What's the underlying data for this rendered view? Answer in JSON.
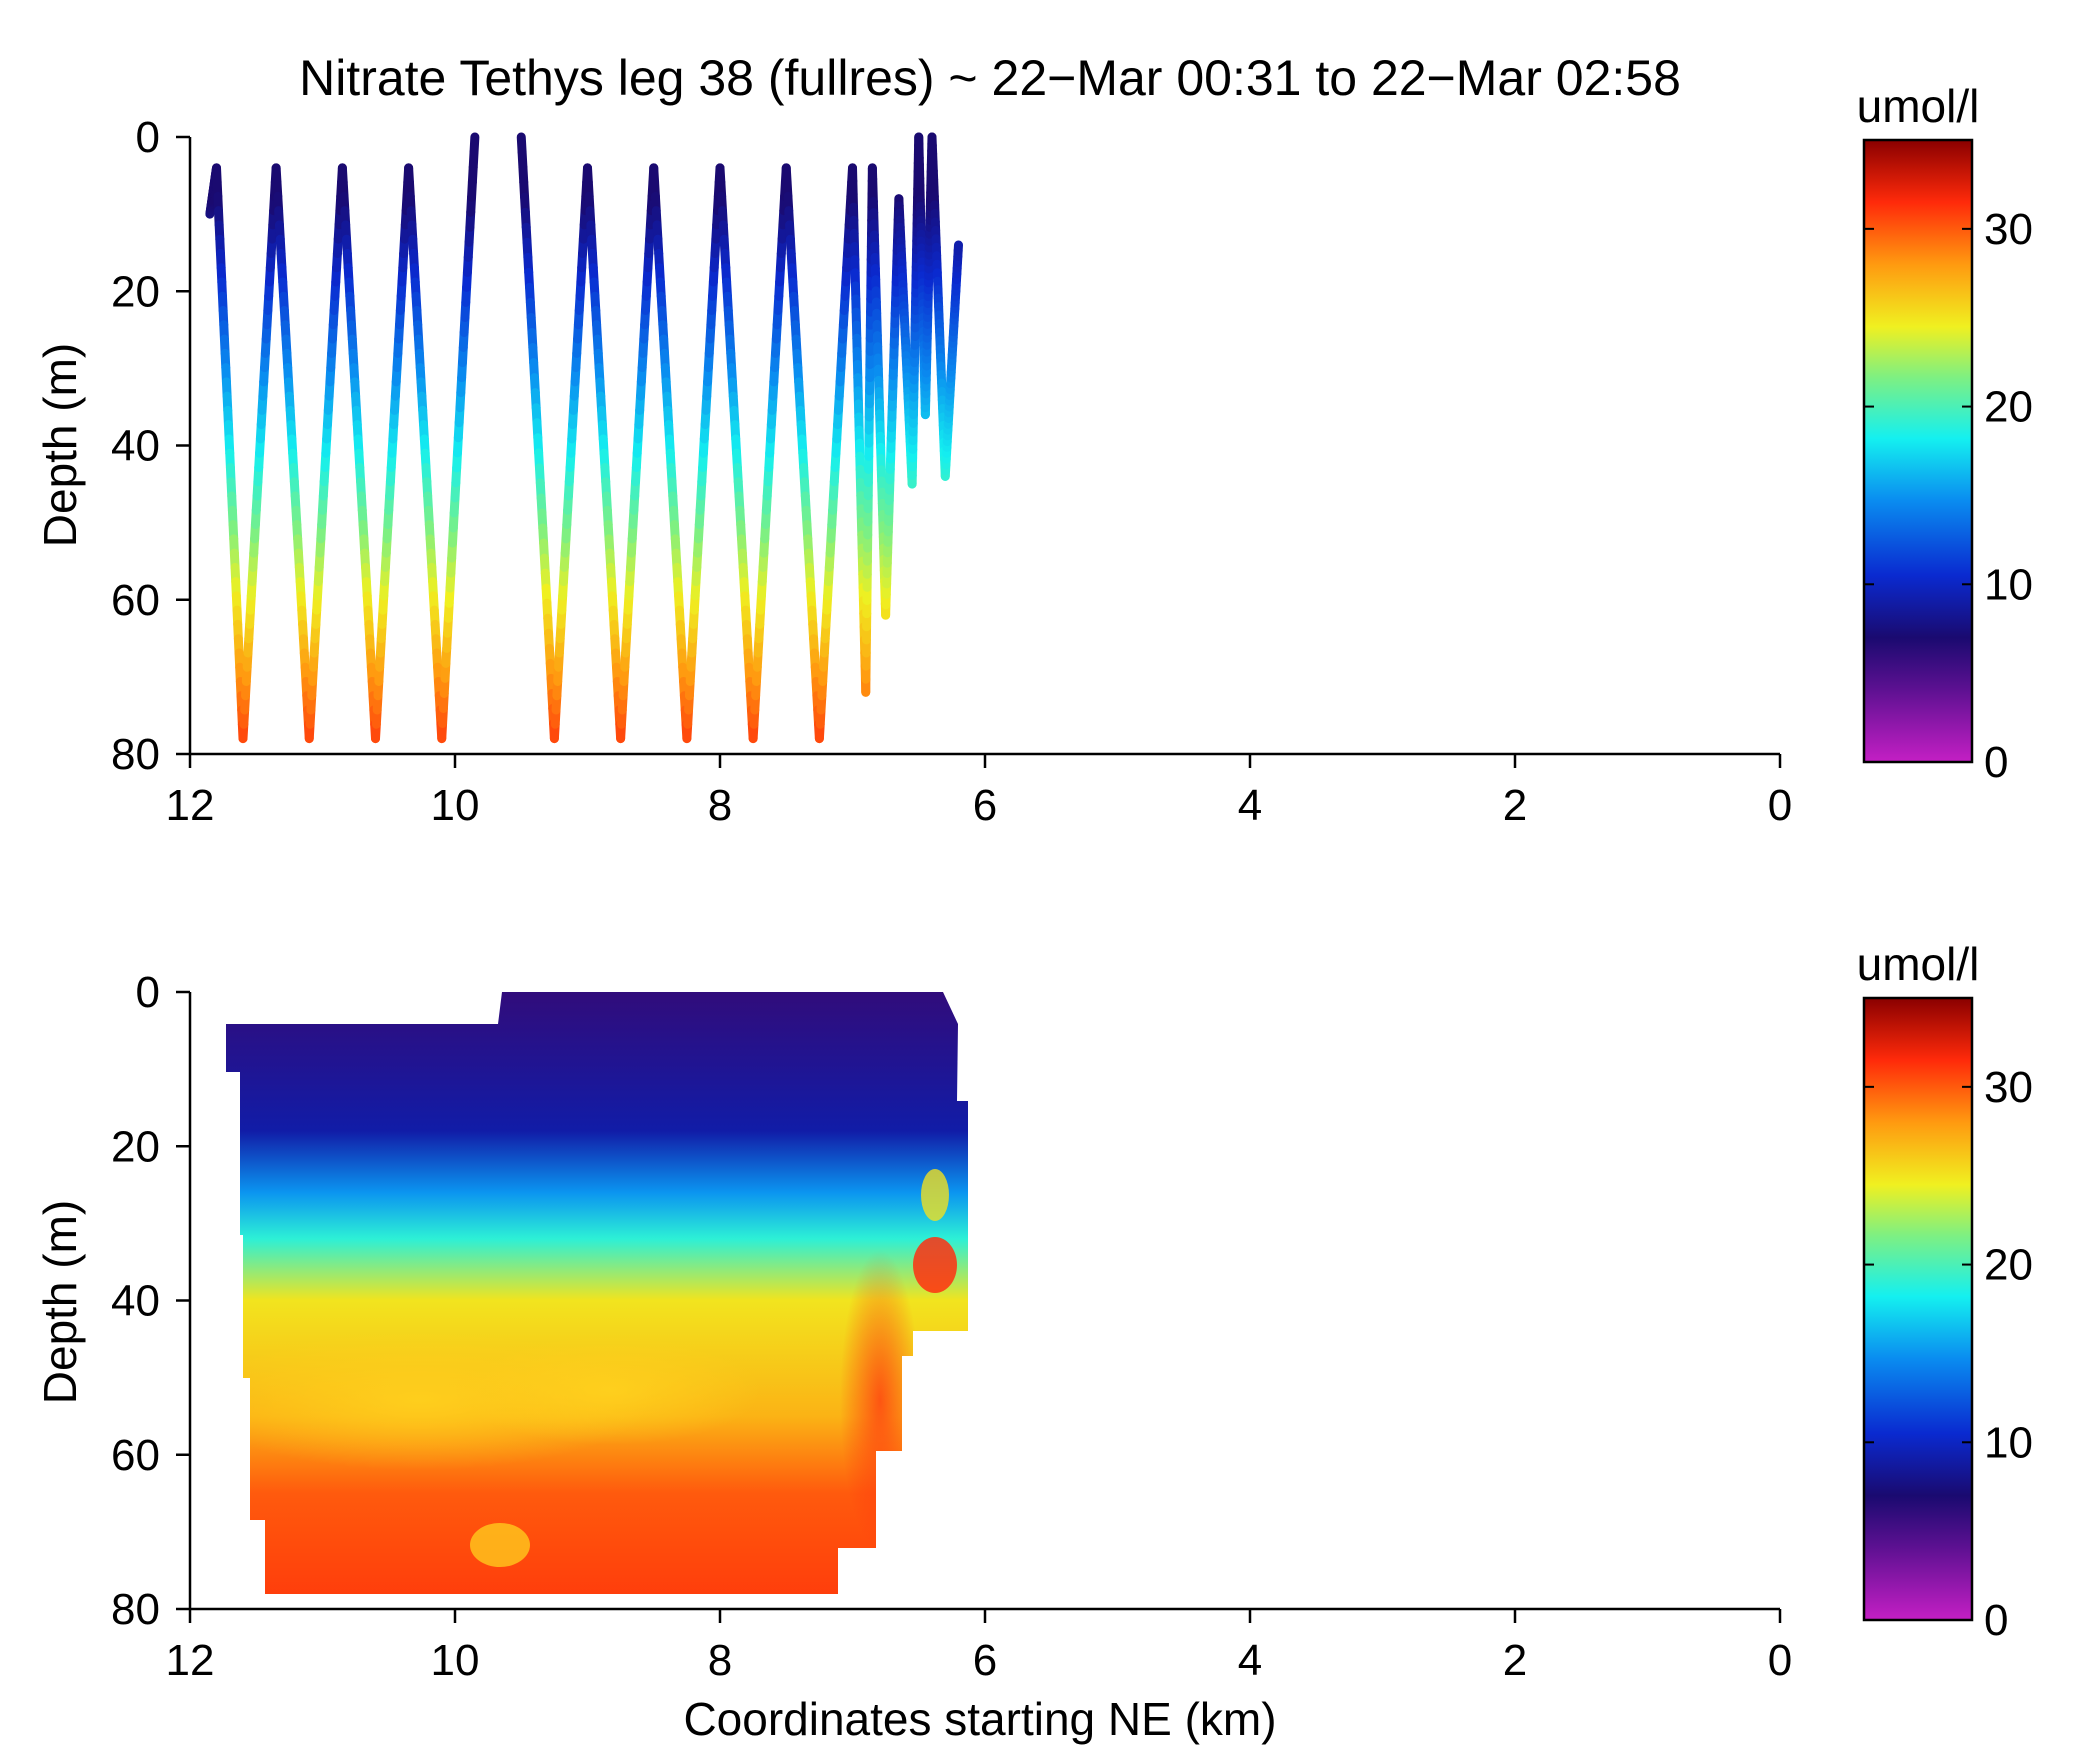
{
  "chart_data": [
    {
      "type": "scatter",
      "title": "Nitrate Tethys leg 38 (fullres) ~ 22−Mar 00:31 to 22−Mar 02:58",
      "xlabel": "",
      "ylabel": "Depth (m)",
      "xlim": [
        12,
        0
      ],
      "ylim": [
        80,
        0
      ],
      "xticks": [
        "12",
        "10",
        "8",
        "6",
        "4",
        "2",
        "0"
      ],
      "yticks": [
        "0",
        "20",
        "40",
        "60",
        "80"
      ],
      "colorbar": {
        "label": "umol/l",
        "range": [
          0,
          35
        ],
        "ticks": [
          "0",
          "10",
          "20",
          "30"
        ],
        "colormap": "jet"
      },
      "grid": false,
      "profile_track": [
        [
          11.85,
          10
        ],
        [
          11.8,
          4
        ],
        [
          11.6,
          78
        ],
        [
          11.35,
          4
        ],
        [
          11.1,
          78
        ],
        [
          10.85,
          4
        ],
        [
          10.6,
          78
        ],
        [
          10.35,
          4
        ],
        [
          10.1,
          78
        ],
        [
          9.85,
          0
        ],
        [
          9.5,
          0
        ],
        [
          9.25,
          78
        ],
        [
          9.0,
          4
        ],
        [
          8.75,
          78
        ],
        [
          8.5,
          4
        ],
        [
          8.25,
          78
        ],
        [
          8.0,
          4
        ],
        [
          7.75,
          78
        ],
        [
          7.5,
          4
        ],
        [
          7.25,
          78
        ],
        [
          7.0,
          4
        ],
        [
          6.9,
          72
        ],
        [
          6.85,
          4
        ],
        [
          6.75,
          62
        ],
        [
          6.65,
          8
        ],
        [
          6.55,
          45
        ],
        [
          6.5,
          0
        ],
        [
          6.45,
          36
        ],
        [
          6.4,
          0
        ],
        [
          6.3,
          44
        ],
        [
          6.2,
          14
        ]
      ]
    },
    {
      "type": "heatmap",
      "title": "",
      "xlabel": "Coordinates starting NE (km)",
      "ylabel": "Depth (m)",
      "xlim": [
        12,
        0
      ],
      "ylim": [
        80,
        0
      ],
      "xticks": [
        "12",
        "10",
        "8",
        "6",
        "4",
        "2",
        "0"
      ],
      "yticks": [
        "0",
        "20",
        "40",
        "60",
        "80"
      ],
      "colorbar": {
        "label": "umol/l",
        "range": [
          0,
          35
        ],
        "ticks": [
          "0",
          "10",
          "20",
          "30"
        ],
        "colormap": "jet"
      },
      "grid": false,
      "depth_profile": [
        {
          "depth": 0,
          "value": 6
        },
        {
          "depth": 18,
          "value": 9
        },
        {
          "depth": 26,
          "value": 15
        },
        {
          "depth": 32,
          "value": 19
        },
        {
          "depth": 40,
          "value": 25
        },
        {
          "depth": 55,
          "value": 27
        },
        {
          "depth": 65,
          "value": 30
        },
        {
          "depth": 80,
          "value": 31
        }
      ]
    }
  ]
}
